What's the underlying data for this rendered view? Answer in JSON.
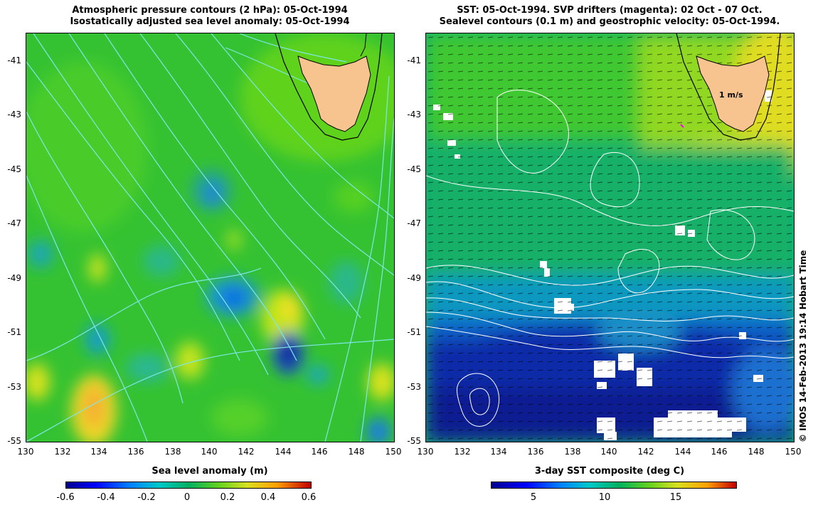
{
  "left_panel": {
    "title_line1": "Atmospheric pressure contours (2 hPa): 05-Oct-1994",
    "title_line2": "Isostatically adjusted sea level anomaly: 05-Oct-1994",
    "colorbar_label": "Sea level anomaly (m)",
    "colorbar_ticks": [
      "-0.6",
      "-0.4",
      "-0.2",
      "0",
      "0.2",
      "0.4",
      "0.6"
    ]
  },
  "right_panel": {
    "title_line1": "SST: 05-Oct-1994. SVP drifters (magenta): 02 Oct - 07 Oct.",
    "title_line2": "Sealevel contours (0.1 m) and geostrophic velocity: 05-Oct-1994.",
    "colorbar_label": "3-day SST composite (deg C)",
    "colorbar_ticks": [
      "5",
      "10",
      "15"
    ],
    "velocity_scale_label": "1 m/s"
  },
  "axes": {
    "y_ticks": [
      "-41",
      "-43",
      "-45",
      "-47",
      "-49",
      "-51",
      "-53",
      "-55"
    ],
    "x_ticks": [
      "130",
      "132",
      "134",
      "136",
      "138",
      "140",
      "142",
      "144",
      "146",
      "148",
      "150"
    ]
  },
  "copyright": "© IMOS 14-Feb-2013 19:14 Hobart Time",
  "colors": {
    "land": "#f7c38f",
    "left_background": "#33cc33",
    "right_background": "#00aa88",
    "contour_left": "#7fe6e6",
    "contour_right": "#ffffff",
    "vector": "#000000"
  }
}
